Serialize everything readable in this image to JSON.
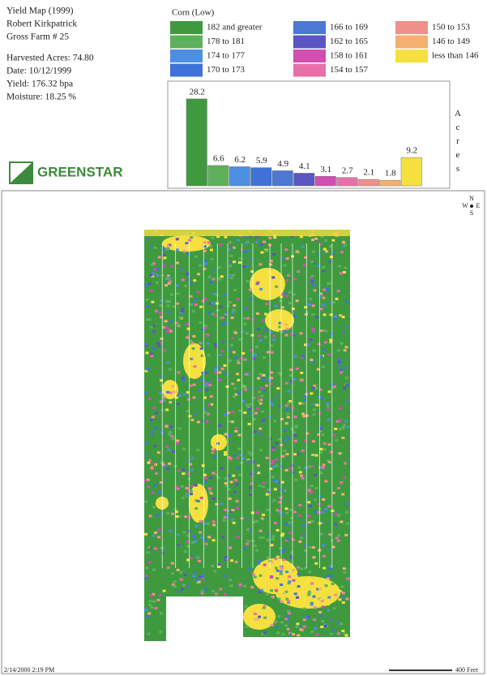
{
  "header": {
    "lines": [
      "Yield Map (1999)",
      "Robert Kirkpatrick",
      "Gross Farm # 25"
    ],
    "stats": [
      "Harvested Acres: 74.80",
      "Date: 10/12/1999",
      "Yield: 176.32 bpa",
      "Moisture: 18.25 %"
    ],
    "logo": "GREENSTAR"
  },
  "legend": {
    "title": "Corn (Low)",
    "classes": [
      {
        "label": "182 and greater",
        "color": "#3f9a3f"
      },
      {
        "label": "178 to 181",
        "color": "#5fb05a"
      },
      {
        "label": "174 to 177",
        "color": "#4d8fe0"
      },
      {
        "label": "170 to 173",
        "color": "#3f72d6"
      },
      {
        "label": "166 to 169",
        "color": "#4a78d2"
      },
      {
        "label": "162 to 165",
        "color": "#5a55c0"
      },
      {
        "label": "158 to 161",
        "color": "#d04fb0"
      },
      {
        "label": "154 to 157",
        "color": "#e870a8"
      },
      {
        "label": "150 to 153",
        "color": "#f0908a"
      },
      {
        "label": "146 to 149",
        "color": "#f5b070"
      },
      {
        "label": "less than 146",
        "color": "#f5e040"
      }
    ]
  },
  "histogram": {
    "axis_label": "Acres",
    "values": [
      28.2,
      6.6,
      6.2,
      5.9,
      4.9,
      4.1,
      3.1,
      2.7,
      2.1,
      1.8,
      9.2
    ]
  },
  "map": {
    "compass": [
      "N",
      "W",
      "E",
      "S"
    ]
  },
  "footer": {
    "timestamp": "2/14/2000 2:19 PM",
    "scale": "400 Feet"
  }
}
